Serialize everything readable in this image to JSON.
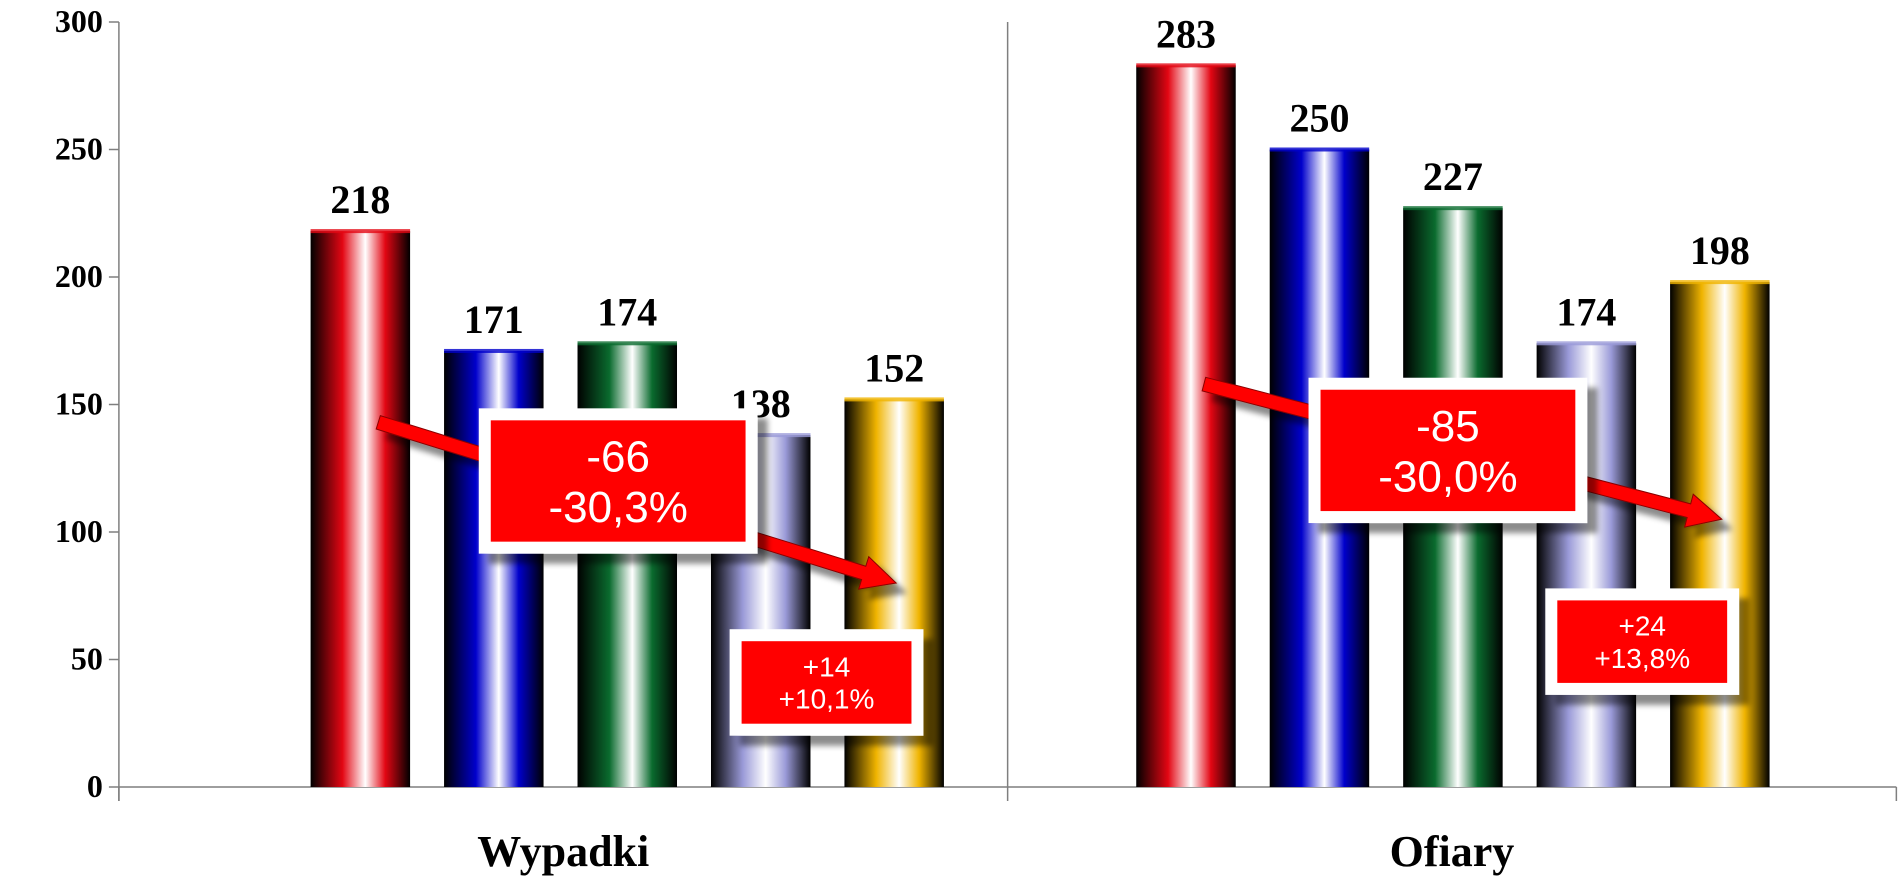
{
  "chart_data": {
    "type": "bar",
    "categories": [
      "Wypadki",
      "Ofiary"
    ],
    "series": [
      {
        "values": [
          218,
          283
        ],
        "color": "#e30613"
      },
      {
        "values": [
          171,
          250
        ],
        "color": "#0000cc"
      },
      {
        "values": [
          174,
          227
        ],
        "color": "#0a6b2e"
      },
      {
        "values": [
          138,
          174
        ],
        "color": "#9a9ad8"
      },
      {
        "values": [
          152,
          198
        ],
        "color": "#f0b400"
      }
    ],
    "ylim": [
      0,
      300
    ],
    "yticks": [
      0,
      50,
      100,
      150,
      200,
      250,
      300
    ],
    "grid": false,
    "legend": "none",
    "annotations": [
      {
        "group": "Wypadki",
        "kind": "decrease",
        "lines": [
          "-66",
          "-30,3%"
        ]
      },
      {
        "group": "Wypadki",
        "kind": "increase",
        "lines": [
          "+14",
          "+10,1%"
        ]
      },
      {
        "group": "Ofiary",
        "kind": "decrease",
        "lines": [
          "-85",
          "-30,0%"
        ]
      },
      {
        "group": "Ofiary",
        "kind": "increase",
        "lines": [
          "+24",
          "+13,8%"
        ]
      }
    ]
  }
}
